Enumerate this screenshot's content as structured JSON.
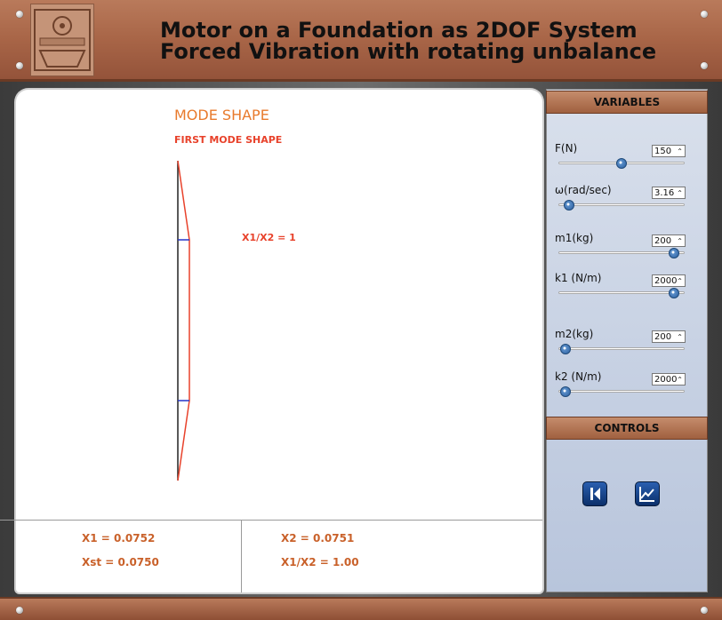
{
  "header": {
    "title_line1": "Motor on a Foundation  as 2DOF System",
    "title_line2": "Forced Vibration with rotating unbalance"
  },
  "plot": {
    "title": "MODE SHAPE",
    "subtitle": "FIRST MODE SHAPE",
    "ratio_label": "X1/X2 = 1"
  },
  "results": {
    "x1": "X1 = 0.0752",
    "xst": "Xst = 0.0750",
    "x2": "X2 = 0.0751",
    "ratio": "X1/X2 = 1.00"
  },
  "variables": {
    "header": "VARIABLES",
    "items": [
      {
        "label": "F(N)",
        "value": "150",
        "level": 0.5
      },
      {
        "label": "ω(rad/sec)",
        "value": "3.16",
        "level": 0.08
      },
      {
        "label": "m1(kg)",
        "value": "200",
        "level": 0.92
      },
      {
        "label": "k1 (N/m)",
        "value": "2000",
        "level": 0.92
      },
      {
        "label": "m2(kg)",
        "value": "200",
        "level": 0.05
      },
      {
        "label": "k2 (N/m)",
        "value": "2000",
        "level": 0.05
      }
    ]
  },
  "controls": {
    "header": "CONTROLS",
    "buttons": [
      "back-icon",
      "graph-icon"
    ]
  },
  "colors": {
    "mode_line": "#e8422b",
    "mass_line": "#2433c9",
    "accent": "#e87a2c"
  }
}
